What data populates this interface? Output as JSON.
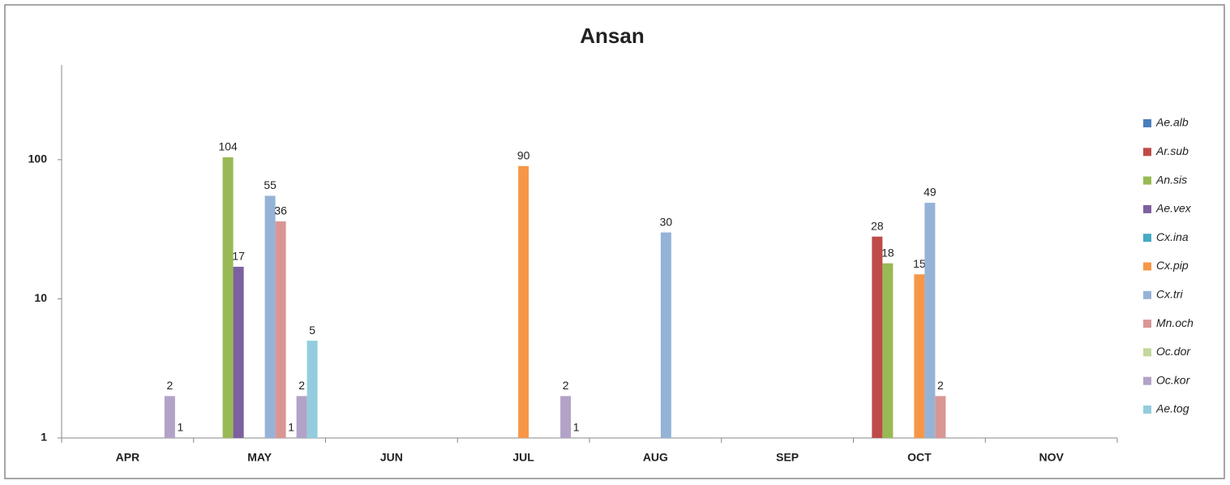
{
  "chart_data": {
    "type": "bar",
    "title": "Ansan",
    "categories": [
      "APR",
      "MAY",
      "JUN",
      "JUL",
      "AUG",
      "SEP",
      "OCT",
      "NOV"
    ],
    "series": [
      {
        "name": "Ae.alb",
        "color": "#4a7ebb",
        "values": [
          null,
          null,
          null,
          null,
          null,
          null,
          null,
          null
        ]
      },
      {
        "name": "Ar.sub",
        "color": "#be4b48",
        "values": [
          null,
          null,
          null,
          null,
          null,
          null,
          28,
          null
        ]
      },
      {
        "name": "An.sis",
        "color": "#98b954",
        "values": [
          null,
          104,
          null,
          null,
          null,
          null,
          18,
          null
        ]
      },
      {
        "name": "Ae.vex",
        "color": "#7d60a0",
        "values": [
          null,
          17,
          null,
          null,
          null,
          null,
          null,
          null
        ]
      },
      {
        "name": "Cx.ina",
        "color": "#46aac5",
        "values": [
          null,
          null,
          null,
          null,
          null,
          null,
          null,
          null
        ]
      },
      {
        "name": "Cx.pip",
        "color": "#f79646",
        "values": [
          null,
          null,
          null,
          90,
          null,
          null,
          15,
          null
        ]
      },
      {
        "name": "Cx.tri",
        "color": "#95b3d7",
        "values": [
          null,
          55,
          null,
          null,
          30,
          null,
          49,
          null
        ]
      },
      {
        "name": "Mn.och",
        "color": "#d99694",
        "values": [
          null,
          36,
          null,
          null,
          null,
          null,
          2,
          null
        ]
      },
      {
        "name": "Oc.dor",
        "color": "#c3d69b",
        "values": [
          null,
          1,
          null,
          null,
          null,
          null,
          null,
          null
        ]
      },
      {
        "name": "Oc.kor",
        "color": "#b3a2c7",
        "values": [
          2,
          2,
          null,
          2,
          null,
          null,
          null,
          null
        ]
      },
      {
        "name": "Ae.tog",
        "color": "#93cddd",
        "values": [
          1,
          5,
          null,
          1,
          null,
          null,
          null,
          null
        ]
      }
    ],
    "log_scale": true,
    "ylim": [
      1,
      480
    ],
    "yticks": [
      1,
      10,
      100
    ],
    "grid": false,
    "legend": "right"
  }
}
